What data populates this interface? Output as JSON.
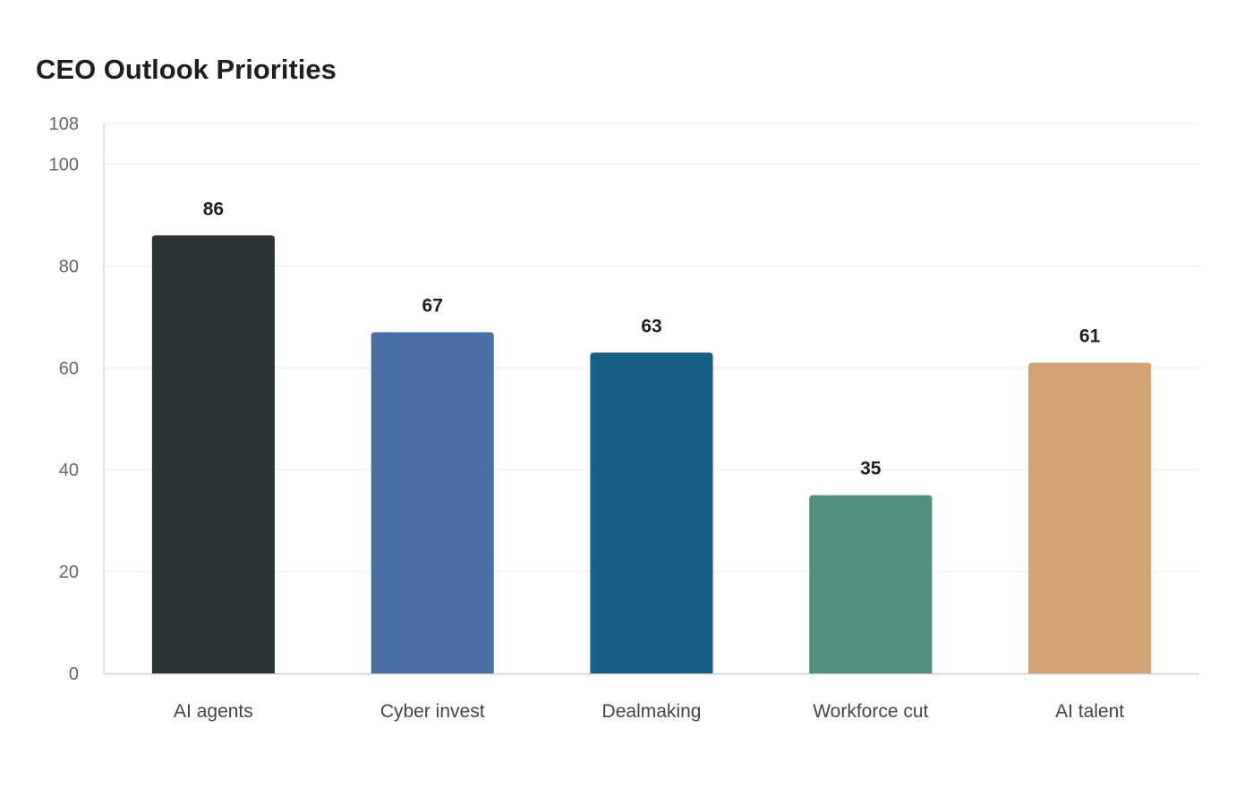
{
  "chart_data": {
    "type": "bar",
    "title": "CEO Outlook Priorities",
    "xlabel": "",
    "ylabel": "",
    "categories": [
      "AI agents",
      "Cyber invest",
      "Dealmaking",
      "Workforce cut",
      "AI talent"
    ],
    "values": [
      86,
      67,
      63,
      35,
      61
    ],
    "value_labels": [
      "86",
      "67",
      "63",
      "35",
      "61"
    ],
    "colors": [
      "#2d3436",
      "#4a6fa5",
      "#166088",
      "#4f8f7c",
      "#d4a373"
    ],
    "ylim": [
      0,
      108
    ],
    "yticks": [
      0,
      20,
      40,
      60,
      80,
      100,
      108
    ],
    "ytick_labels": [
      "0",
      "20",
      "40",
      "60",
      "80",
      "100",
      "108"
    ],
    "grid": true,
    "legend": "none"
  }
}
